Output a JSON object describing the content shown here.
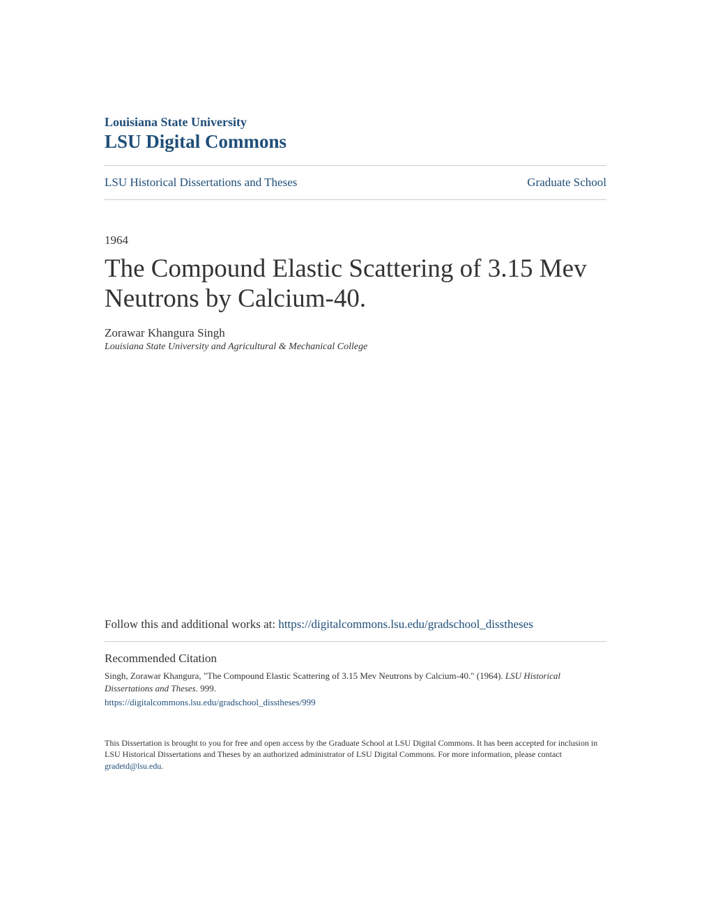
{
  "header": {
    "institution": "Louisiana State University",
    "repository": "LSU Digital Commons"
  },
  "breadcrumb": {
    "collection": "LSU Historical Dissertations and Theses",
    "school": "Graduate School"
  },
  "document": {
    "year": "1964",
    "title": "The Compound Elastic Scattering of 3.15 Mev Neutrons by Calcium-40.",
    "author": "Zorawar Khangura Singh",
    "affiliation": "Louisiana State University and Agricultural & Mechanical College"
  },
  "follow": {
    "prefix": "Follow this and additional works at: ",
    "url": "https://digitalcommons.lsu.edu/gradschool_disstheses"
  },
  "citation": {
    "heading": "Recommended Citation",
    "text_part1": "Singh, Zorawar Khangura, \"The Compound Elastic Scattering of 3.15 Mev Neutrons by Calcium-40.\" (1964). ",
    "text_italic": "LSU Historical Dissertations and Theses",
    "text_part2": ". 999.",
    "url": "https://digitalcommons.lsu.edu/gradschool_disstheses/999"
  },
  "footer": {
    "text": "This Dissertation is brought to you for free and open access by the Graduate School at LSU Digital Commons. It has been accepted for inclusion in LSU Historical Dissertations and Theses by an authorized administrator of LSU Digital Commons. For more information, please contact ",
    "email": "gradetd@lsu.edu",
    "suffix": "."
  },
  "colors": {
    "link_color": "#1f4e79",
    "text_color": "#333333",
    "divider_color": "#cccccc",
    "background": "#ffffff"
  }
}
